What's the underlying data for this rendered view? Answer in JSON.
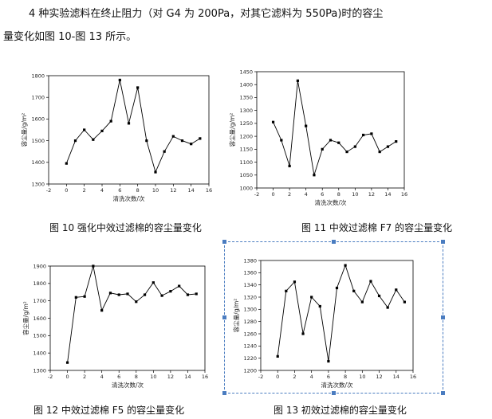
{
  "paragraph": {
    "line1": "4 种实验滤料在终止阻力（对 G4 为 200Pa，对其它滤料为 550Pa)时的容尘",
    "line2": "量变化如图 10-图 13 所示。"
  },
  "colors": {
    "selection": "#4a7cc0",
    "line": "#000000"
  },
  "chart_data": [
    {
      "type": "line",
      "caption": "图 10 强化中效过滤棉的容尘量变化",
      "xlabel": "清洗次数/次",
      "ylabel": "容尘量/g/m²",
      "xlim": [
        -2,
        16
      ],
      "ylim": [
        1300,
        1800
      ],
      "xticks": [
        -2,
        0,
        2,
        4,
        6,
        8,
        10,
        12,
        14,
        16
      ],
      "yticks": [
        1300,
        1400,
        1500,
        1600,
        1700,
        1800
      ],
      "x": [
        0,
        1,
        2,
        3,
        4,
        5,
        6,
        7,
        8,
        9,
        10,
        11,
        12,
        13,
        14,
        15
      ],
      "values": [
        1395,
        1500,
        1550,
        1505,
        1545,
        1590,
        1780,
        1580,
        1745,
        1500,
        1355,
        1450,
        1520,
        1500,
        1485,
        1510
      ]
    },
    {
      "type": "line",
      "caption": "图 11 中效过滤棉 F7 的容尘量变化",
      "xlabel": "清洗次数/次",
      "ylabel": "容尘量/g/m²",
      "xlim": [
        -2,
        16
      ],
      "ylim": [
        1000,
        1450
      ],
      "xticks": [
        -2,
        0,
        2,
        4,
        6,
        8,
        10,
        12,
        14,
        16
      ],
      "yticks": [
        1000,
        1050,
        1100,
        1150,
        1200,
        1250,
        1300,
        1350,
        1400,
        1450
      ],
      "x": [
        0,
        1,
        2,
        3,
        4,
        5,
        6,
        7,
        8,
        9,
        10,
        11,
        12,
        13,
        14,
        15
      ],
      "values": [
        1255,
        1185,
        1085,
        1415,
        1240,
        1050,
        1150,
        1185,
        1175,
        1140,
        1160,
        1205,
        1210,
        1140,
        1160,
        1180
      ]
    },
    {
      "type": "line",
      "caption": "图 12 中效过滤棉 F5 的容尘量变化",
      "xlabel": "清洗次数/次",
      "ylabel": "容尘量/g/m²",
      "xlim": [
        -2,
        16
      ],
      "ylim": [
        1300,
        1900
      ],
      "xticks": [
        -2,
        0,
        2,
        4,
        6,
        8,
        10,
        12,
        14,
        16
      ],
      "yticks": [
        1300,
        1400,
        1500,
        1600,
        1700,
        1800,
        1900
      ],
      "x": [
        0,
        1,
        2,
        3,
        4,
        5,
        6,
        7,
        8,
        9,
        10,
        11,
        12,
        13,
        14,
        15
      ],
      "values": [
        1345,
        1720,
        1725,
        1900,
        1645,
        1745,
        1735,
        1740,
        1695,
        1735,
        1805,
        1730,
        1755,
        1785,
        1735,
        1740
      ]
    },
    {
      "type": "line",
      "caption": "图 13 初效过滤棉的容尘量变化",
      "xlabel": "清洗次数/次",
      "ylabel": "容尘量/g/m²",
      "xlim": [
        -2,
        16
      ],
      "ylim": [
        1200,
        1380
      ],
      "xticks": [
        -2,
        0,
        2,
        4,
        6,
        8,
        10,
        12,
        14,
        16
      ],
      "yticks": [
        1200,
        1220,
        1240,
        1260,
        1280,
        1300,
        1320,
        1340,
        1360,
        1380
      ],
      "x": [
        0,
        1,
        2,
        3,
        4,
        5,
        6,
        7,
        8,
        9,
        10,
        11,
        12,
        13,
        14,
        15
      ],
      "values": [
        1223,
        1330,
        1345,
        1260,
        1320,
        1305,
        1215,
        1335,
        1372,
        1330,
        1312,
        1346,
        1322,
        1303,
        1332,
        1312
      ]
    }
  ]
}
